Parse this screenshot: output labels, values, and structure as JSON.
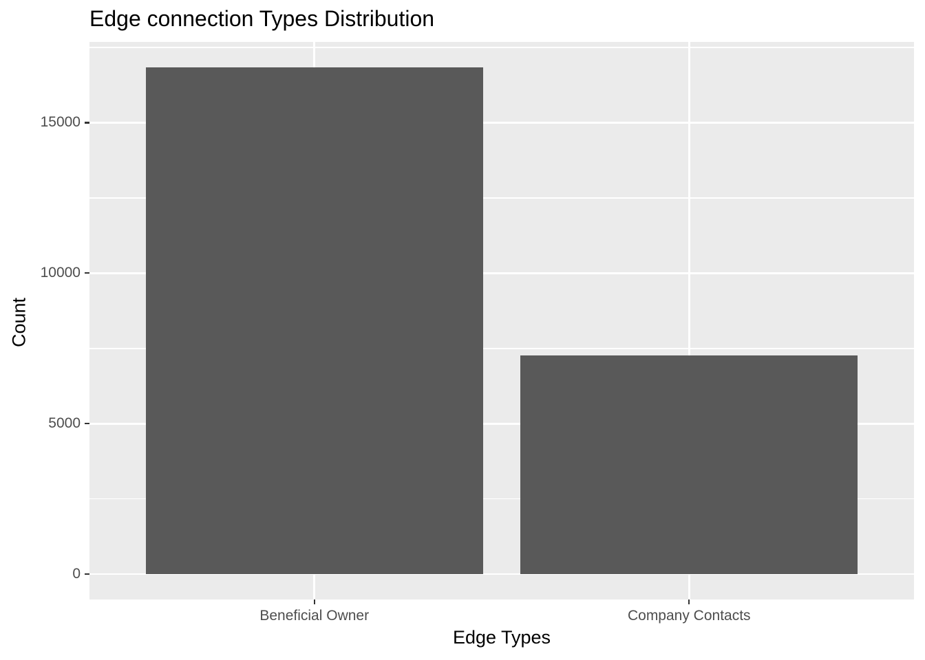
{
  "chart_data": {
    "type": "bar",
    "title": "Edge connection Types Distribution",
    "xlabel": "Edge Types",
    "ylabel": "Count",
    "categories": [
      "Beneficial Owner",
      "Company Contacts"
    ],
    "values": [
      16840,
      7260
    ],
    "yticks": [
      0,
      5000,
      10000,
      15000
    ],
    "yminor": [
      2500,
      7500,
      12500,
      17500
    ],
    "ylim": [
      0,
      16840
    ],
    "y_expansion": 0.05,
    "bar_width_fraction": 0.9,
    "grid": true,
    "legend": false,
    "theme": "ggplot-gray",
    "colors": {
      "bar_fill": "#595959",
      "panel_background": "#EBEBEB",
      "gridline": "#FFFFFF",
      "tick_text": "#4D4D4D",
      "tick_mark": "#333333",
      "title_text": "#000000",
      "page_background": "#FFFFFF"
    }
  }
}
